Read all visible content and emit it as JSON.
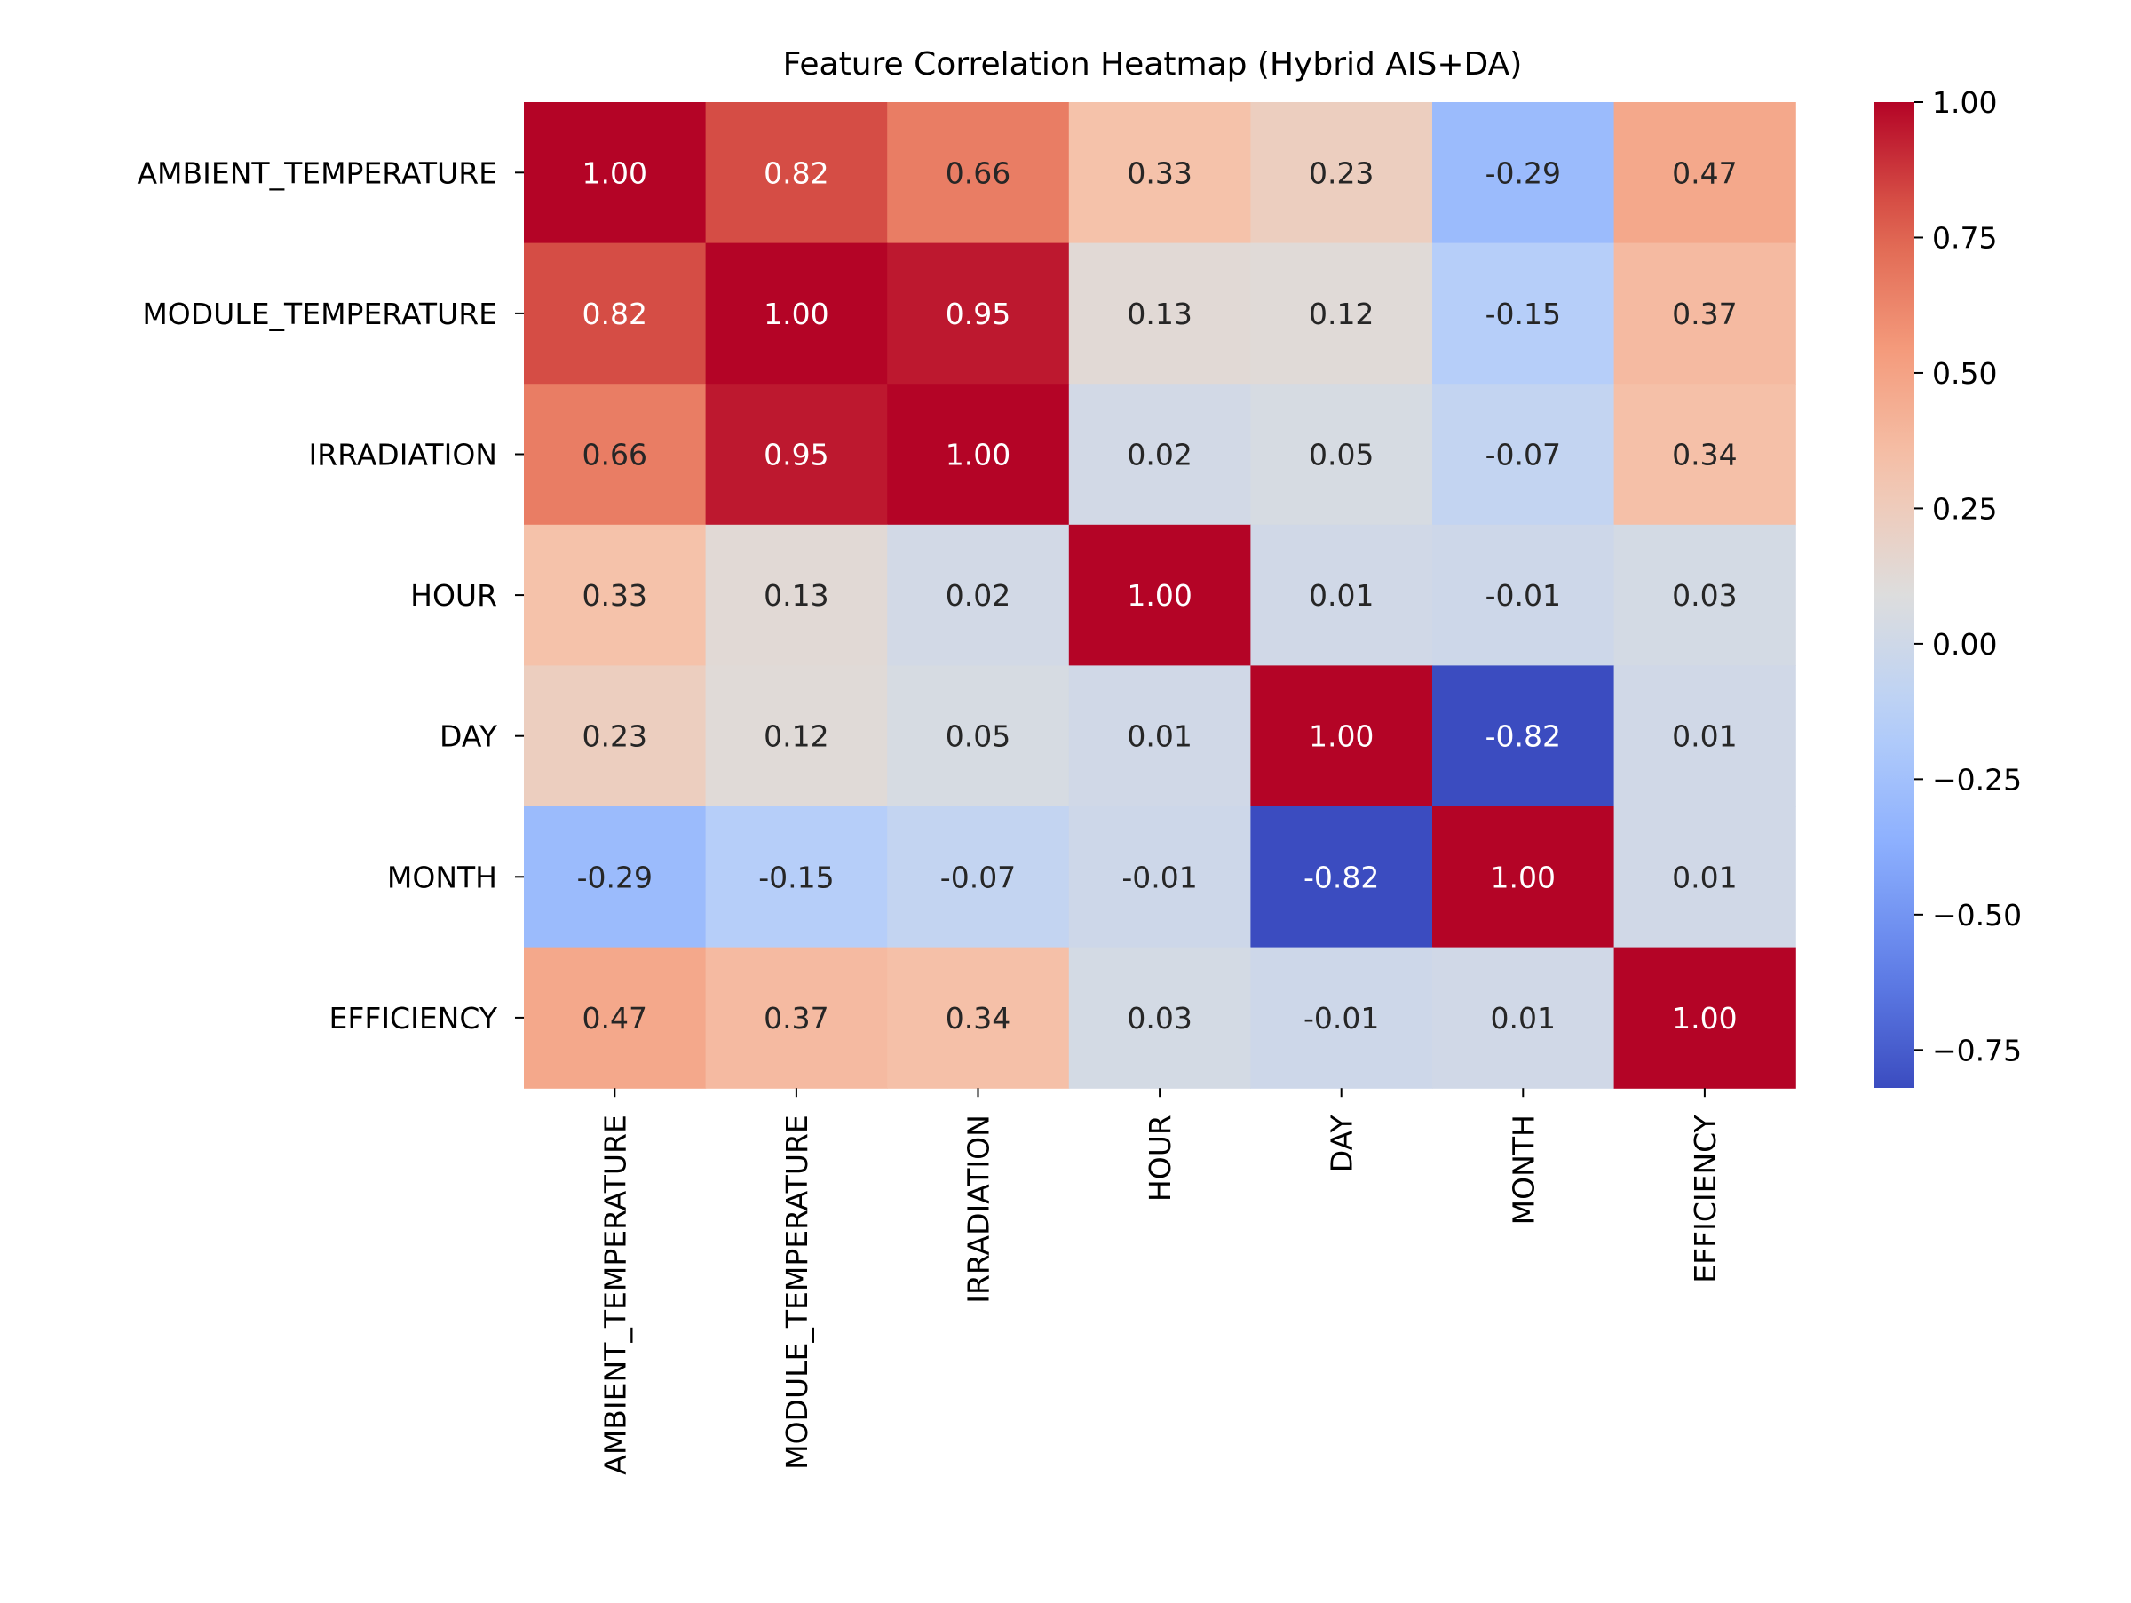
{
  "chart_data": {
    "type": "heatmap",
    "title": "Feature Correlation Heatmap (Hybrid AIS+DA)",
    "xlabel": "",
    "ylabel": "",
    "rows": [
      "AMBIENT_TEMPERATURE",
      "MODULE_TEMPERATURE",
      "IRRADIATION",
      "HOUR",
      "DAY",
      "MONTH",
      "EFFICIENCY"
    ],
    "columns": [
      "AMBIENT_TEMPERATURE",
      "MODULE_TEMPERATURE",
      "IRRADIATION",
      "HOUR",
      "DAY",
      "MONTH",
      "EFFICIENCY"
    ],
    "values": [
      [
        1.0,
        0.82,
        0.66,
        0.33,
        0.23,
        -0.29,
        0.47
      ],
      [
        0.82,
        1.0,
        0.95,
        0.13,
        0.12,
        -0.15,
        0.37
      ],
      [
        0.66,
        0.95,
        1.0,
        0.02,
        0.05,
        -0.07,
        0.34
      ],
      [
        0.33,
        0.13,
        0.02,
        1.0,
        0.01,
        -0.01,
        0.03
      ],
      [
        0.23,
        0.12,
        0.05,
        0.01,
        1.0,
        -0.82,
        0.01
      ],
      [
        -0.29,
        -0.15,
        -0.07,
        -0.01,
        -0.82,
        1.0,
        0.01
      ],
      [
        0.47,
        0.37,
        0.34,
        0.03,
        -0.01,
        0.01,
        1.0
      ]
    ],
    "value_format": "2 decimals",
    "colormap": "coolwarm",
    "color_range": [
      -0.82,
      1.0
    ],
    "colorbar_ticks": [
      1.0,
      0.75,
      0.5,
      0.25,
      0.0,
      -0.25,
      -0.5,
      -0.75
    ],
    "colorbar_tick_labels": [
      "1.00",
      "0.75",
      "0.50",
      "0.25",
      "0.00",
      "−0.25",
      "−0.50",
      "−0.75"
    ],
    "grid": false,
    "legend": "colorbar-right"
  }
}
